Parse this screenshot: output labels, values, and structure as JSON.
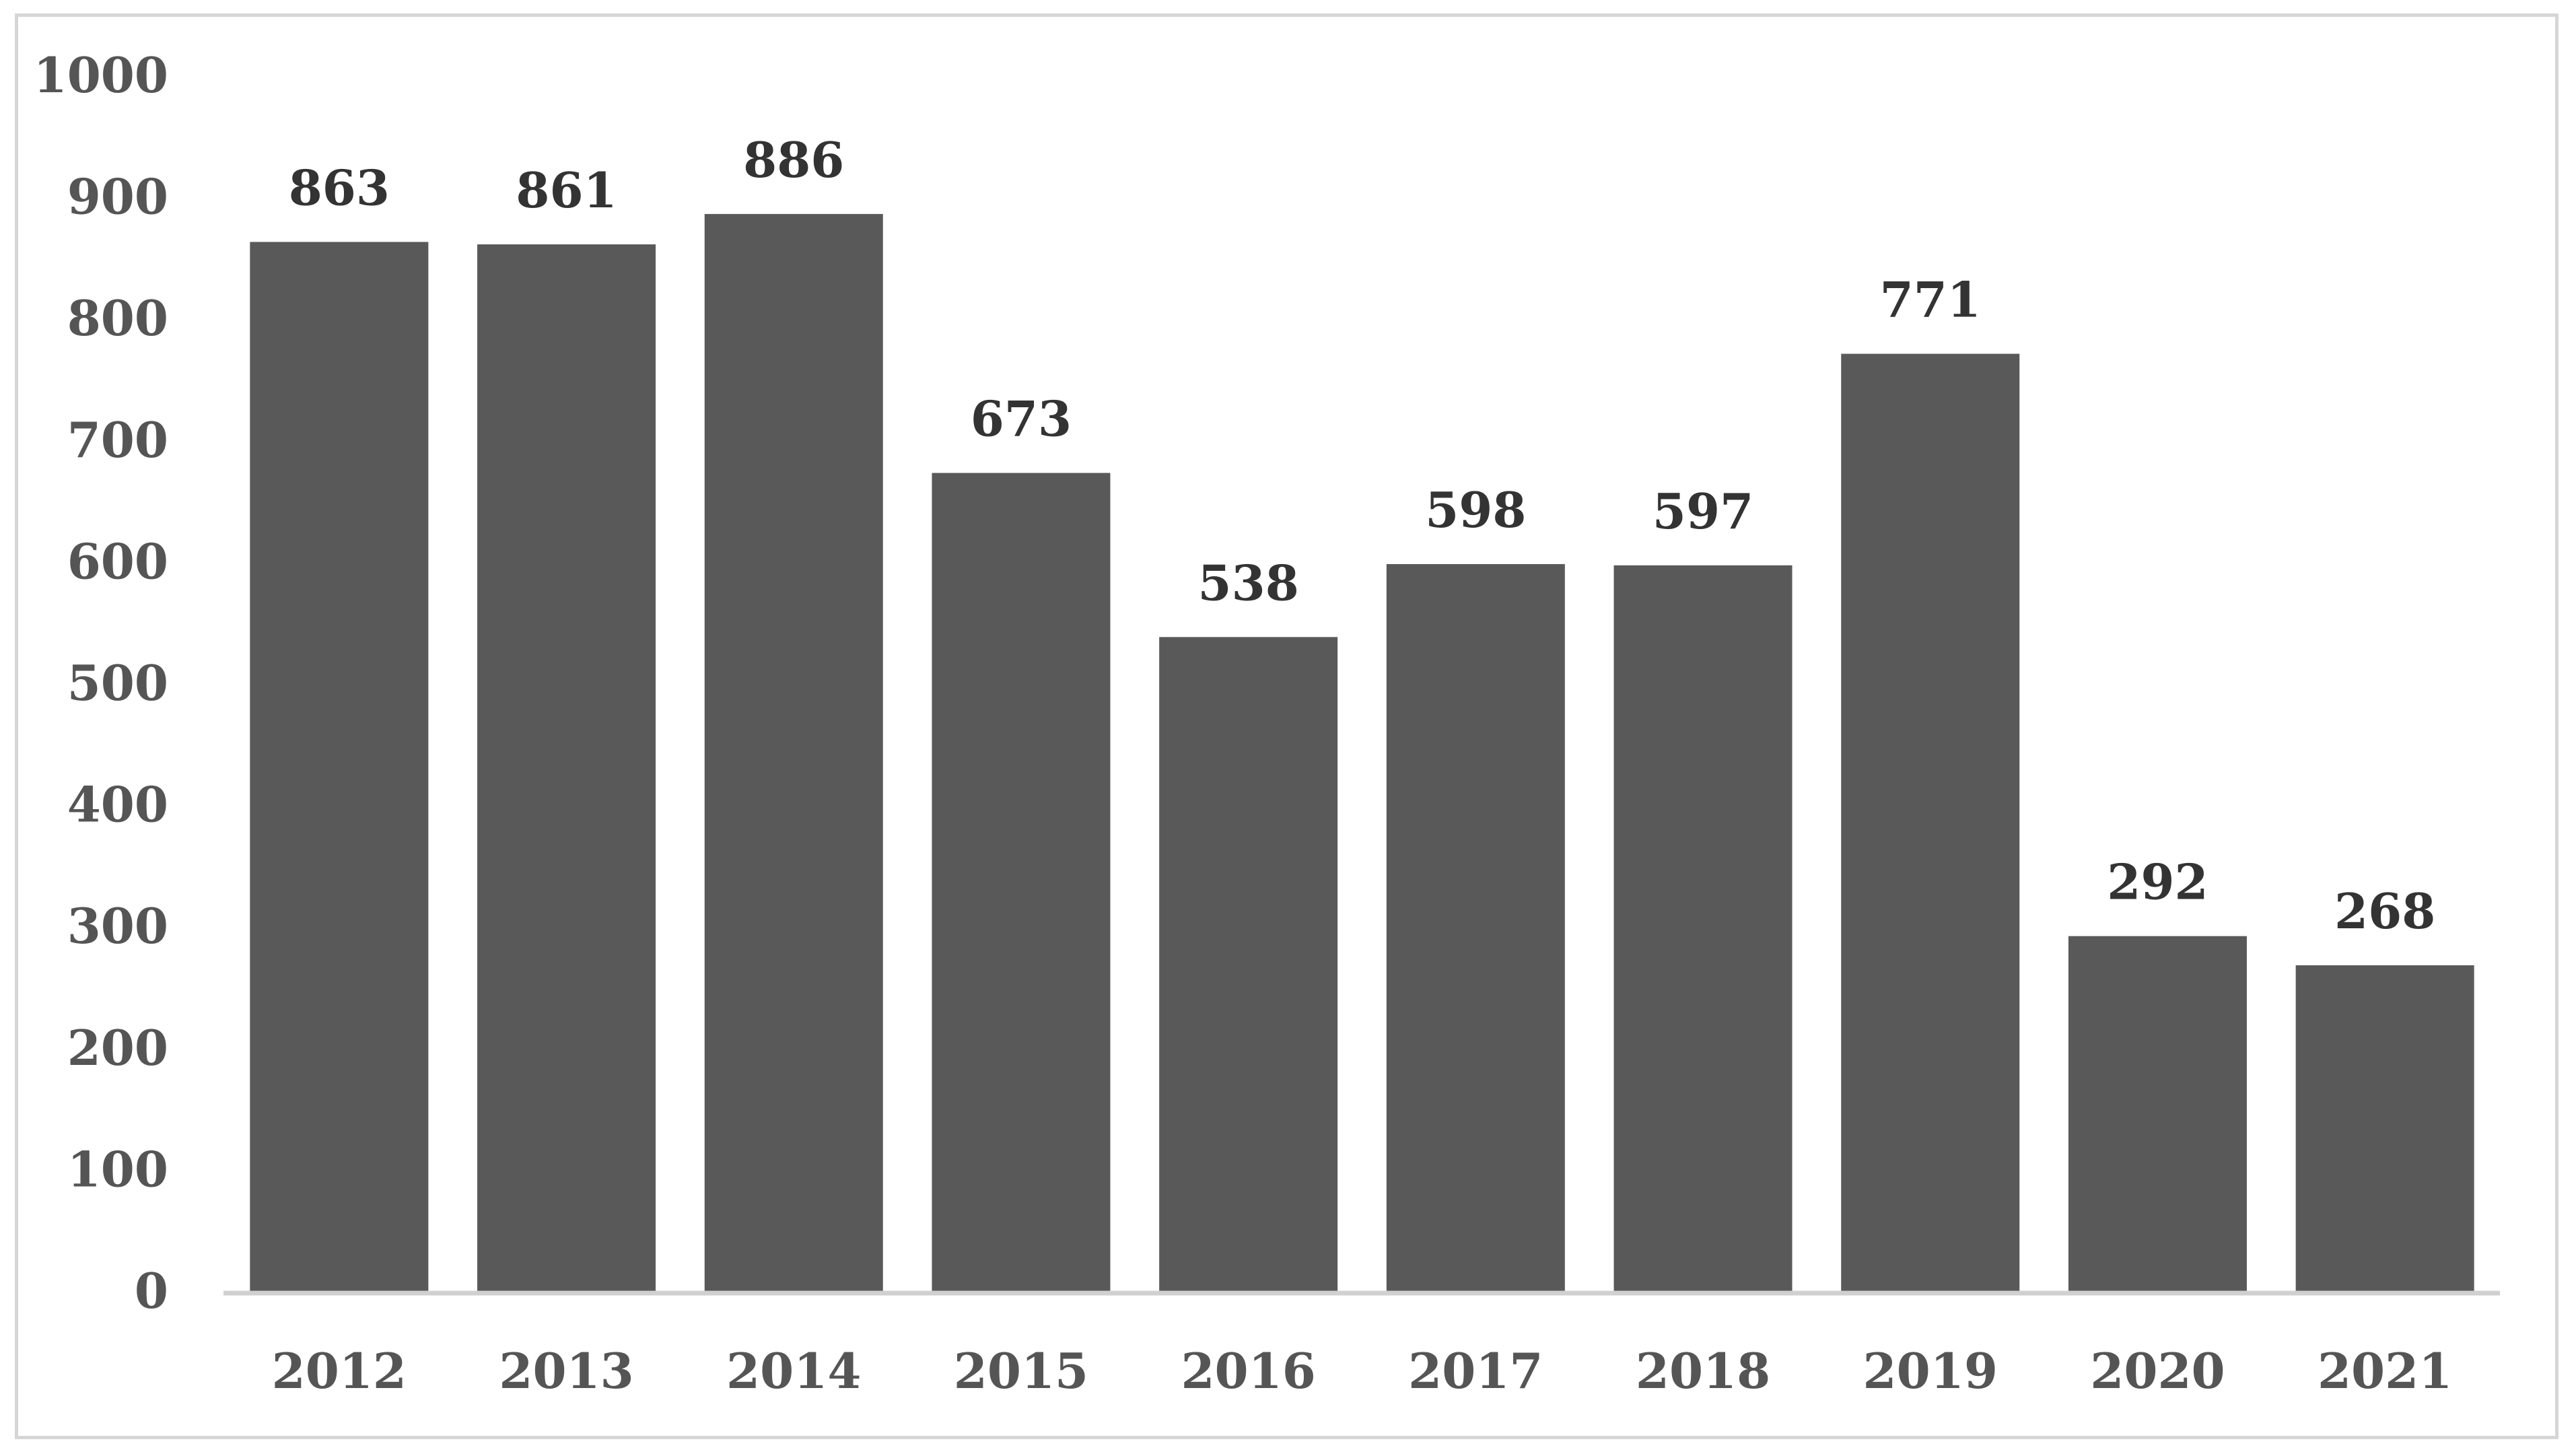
{
  "chart_data": {
    "type": "bar",
    "title": "",
    "xlabel": "",
    "ylabel": "",
    "categories": [
      "2012",
      "2013",
      "2014",
      "2015",
      "2016",
      "2017",
      "2018",
      "2019",
      "2020",
      "2021"
    ],
    "values": [
      863,
      861,
      886,
      673,
      538,
      598,
      597,
      771,
      292,
      268
    ],
    "data_labels": [
      "863",
      "861",
      "886",
      "673",
      "538",
      "598",
      "597",
      "771",
      "292",
      "268"
    ],
    "ylim": [
      0,
      1000
    ],
    "yticks": [
      0,
      100,
      200,
      300,
      400,
      500,
      600,
      700,
      800,
      900,
      1000
    ],
    "ytick_labels": [
      "0",
      "100",
      "200",
      "300",
      "400",
      "500",
      "600",
      "700",
      "800",
      "900",
      "1000"
    ],
    "grid": false,
    "legend": "none",
    "colors": {
      "bar": "#595959",
      "axis": "#d0d0d0",
      "frame": "#d6d6d6",
      "tick_text": "#555555",
      "label_text": "#333333"
    }
  }
}
